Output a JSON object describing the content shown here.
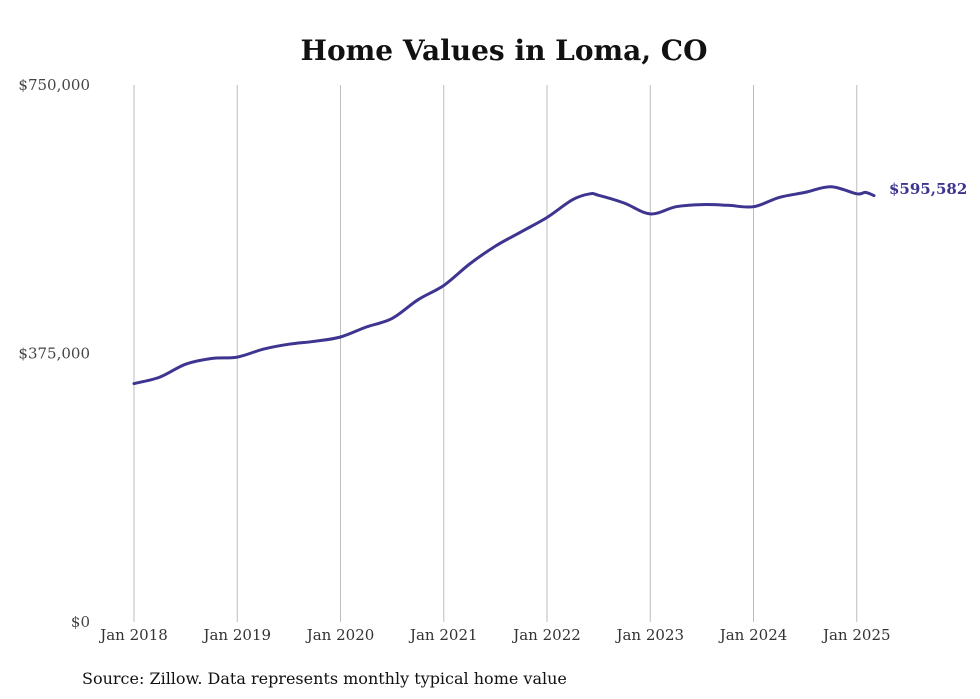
{
  "chart_data": {
    "type": "line",
    "title": "Home Values in Loma, CO",
    "xlabel": "",
    "ylabel": "",
    "ylim": [
      0,
      750000
    ],
    "y_ticks": [
      {
        "value": 0,
        "label": "$0"
      },
      {
        "value": 375000,
        "label": "$375,000"
      },
      {
        "value": 750000,
        "label": "$750,000"
      }
    ],
    "x_ticks": [
      {
        "value": "2018-01",
        "label": "Jan 2018"
      },
      {
        "value": "2019-01",
        "label": "Jan 2019"
      },
      {
        "value": "2020-01",
        "label": "Jan 2020"
      },
      {
        "value": "2021-01",
        "label": "Jan 2021"
      },
      {
        "value": "2022-01",
        "label": "Jan 2022"
      },
      {
        "value": "2023-01",
        "label": "Jan 2023"
      },
      {
        "value": "2024-01",
        "label": "Jan 2024"
      },
      {
        "value": "2025-01",
        "label": "Jan 2025"
      }
    ],
    "grid": {
      "vertical": true,
      "horizontal": false
    },
    "legend": "none",
    "series": [
      {
        "color": "#3d3590",
        "x": [
          "2018-01",
          "2018-04",
          "2018-07",
          "2018-10",
          "2019-01",
          "2019-04",
          "2019-07",
          "2019-10",
          "2020-01",
          "2020-04",
          "2020-07",
          "2020-10",
          "2021-01",
          "2021-04",
          "2021-07",
          "2021-10",
          "2022-01",
          "2022-04",
          "2022-06",
          "2022-07",
          "2022-10",
          "2023-01",
          "2023-04",
          "2023-07",
          "2023-10",
          "2024-01",
          "2024-04",
          "2024-07",
          "2024-10",
          "2025-01",
          "2025-02",
          "2025-03"
        ],
        "y": [
          333000,
          342000,
          360000,
          368000,
          370000,
          381000,
          388000,
          392000,
          398000,
          412000,
          424000,
          450000,
          470000,
          500000,
          525000,
          545000,
          565000,
          590000,
          598000,
          596000,
          585000,
          570000,
          580000,
          583000,
          582000,
          580000,
          593000,
          600000,
          608000,
          598000,
          600000,
          595582
        ]
      }
    ],
    "end_label": "$595,582"
  },
  "source_note": "Source: Zillow. Data represents monthly typical home value"
}
